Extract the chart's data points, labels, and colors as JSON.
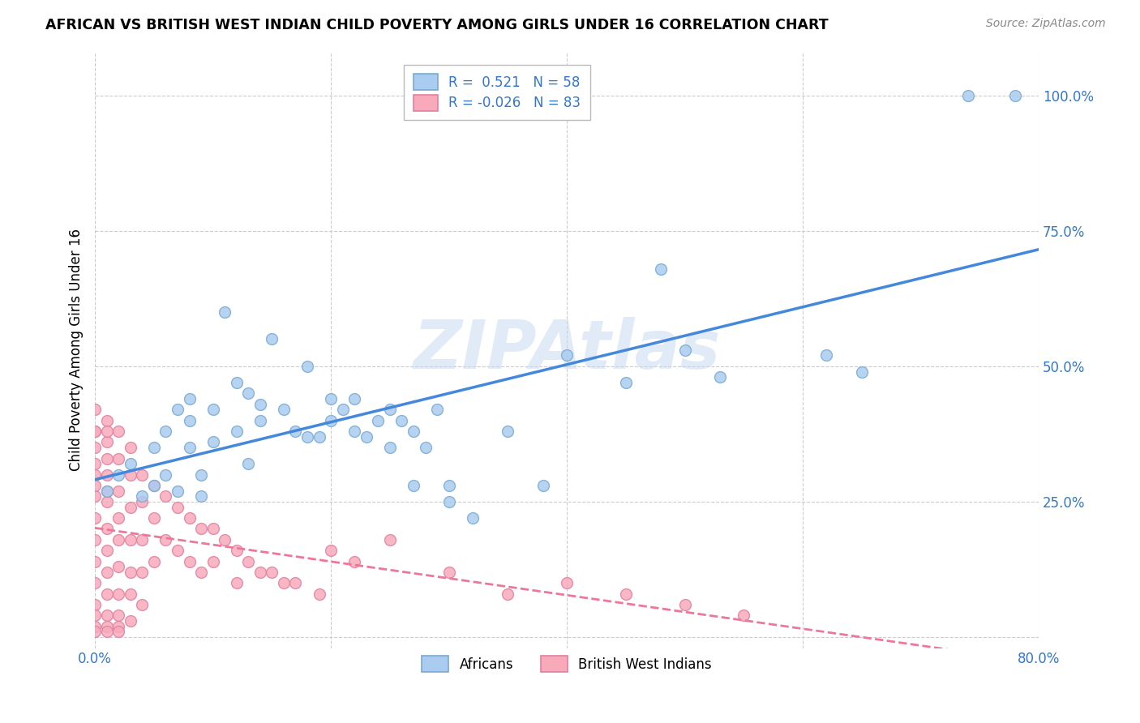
{
  "title": "AFRICAN VS BRITISH WEST INDIAN CHILD POVERTY AMONG GIRLS UNDER 16 CORRELATION CHART",
  "source": "Source: ZipAtlas.com",
  "ylabel": "Child Poverty Among Girls Under 16",
  "xlim": [
    0.0,
    0.8
  ],
  "ylim": [
    -0.02,
    1.08
  ],
  "xticks": [
    0.0,
    0.2,
    0.4,
    0.6,
    0.8
  ],
  "xticklabels": [
    "0.0%",
    "",
    "",
    "",
    "80.0%"
  ],
  "ytick_positions": [
    0.0,
    0.25,
    0.5,
    0.75,
    1.0
  ],
  "yticklabels": [
    "",
    "25.0%",
    "50.0%",
    "75.0%",
    "100.0%"
  ],
  "grid_color": "#cccccc",
  "watermark": "ZIPAtlas",
  "african_color": "#aaccf0",
  "african_edge": "#7aaad0",
  "bwi_color": "#f8aabb",
  "bwi_edge": "#e080a0",
  "R_african": 0.521,
  "N_african": 58,
  "R_bwi": -0.026,
  "N_bwi": 83,
  "african_line_color": "#4488dd",
  "bwi_line_color": "#ee7799",
  "africans_x": [
    0.01,
    0.02,
    0.03,
    0.04,
    0.05,
    0.05,
    0.06,
    0.06,
    0.07,
    0.07,
    0.08,
    0.08,
    0.08,
    0.09,
    0.09,
    0.1,
    0.1,
    0.11,
    0.12,
    0.12,
    0.13,
    0.13,
    0.14,
    0.14,
    0.15,
    0.16,
    0.17,
    0.18,
    0.18,
    0.19,
    0.2,
    0.2,
    0.21,
    0.22,
    0.22,
    0.23,
    0.24,
    0.25,
    0.25,
    0.26,
    0.27,
    0.27,
    0.28,
    0.29,
    0.3,
    0.3,
    0.32,
    0.35,
    0.38,
    0.4,
    0.45,
    0.48,
    0.5,
    0.53,
    0.62,
    0.65,
    0.74,
    0.78
  ],
  "africans_y": [
    0.27,
    0.3,
    0.32,
    0.26,
    0.35,
    0.28,
    0.3,
    0.38,
    0.42,
    0.27,
    0.35,
    0.4,
    0.44,
    0.26,
    0.3,
    0.36,
    0.42,
    0.6,
    0.38,
    0.47,
    0.32,
    0.45,
    0.4,
    0.43,
    0.55,
    0.42,
    0.38,
    0.5,
    0.37,
    0.37,
    0.4,
    0.44,
    0.42,
    0.38,
    0.44,
    0.37,
    0.4,
    0.35,
    0.42,
    0.4,
    0.38,
    0.28,
    0.35,
    0.42,
    0.25,
    0.28,
    0.22,
    0.38,
    0.28,
    0.52,
    0.47,
    0.68,
    0.53,
    0.48,
    0.52,
    0.49,
    1.0,
    1.0
  ],
  "bwi_x": [
    0.0,
    0.0,
    0.0,
    0.0,
    0.0,
    0.0,
    0.0,
    0.0,
    0.0,
    0.0,
    0.0,
    0.0,
    0.0,
    0.0,
    0.0,
    0.0,
    0.01,
    0.01,
    0.01,
    0.01,
    0.01,
    0.01,
    0.01,
    0.01,
    0.01,
    0.01,
    0.01,
    0.01,
    0.01,
    0.01,
    0.02,
    0.02,
    0.02,
    0.02,
    0.02,
    0.02,
    0.02,
    0.02,
    0.02,
    0.02,
    0.03,
    0.03,
    0.03,
    0.03,
    0.03,
    0.03,
    0.03,
    0.04,
    0.04,
    0.04,
    0.04,
    0.04,
    0.05,
    0.05,
    0.05,
    0.06,
    0.06,
    0.07,
    0.07,
    0.08,
    0.08,
    0.09,
    0.09,
    0.1,
    0.1,
    0.11,
    0.12,
    0.12,
    0.13,
    0.14,
    0.15,
    0.16,
    0.17,
    0.19,
    0.2,
    0.22,
    0.25,
    0.3,
    0.35,
    0.4,
    0.45,
    0.5,
    0.55
  ],
  "bwi_y": [
    0.42,
    0.38,
    0.35,
    0.3,
    0.26,
    0.22,
    0.18,
    0.14,
    0.1,
    0.06,
    0.04,
    0.02,
    0.01,
    0.38,
    0.32,
    0.28,
    0.4,
    0.36,
    0.3,
    0.25,
    0.2,
    0.16,
    0.12,
    0.08,
    0.04,
    0.02,
    0.01,
    0.38,
    0.33,
    0.27,
    0.38,
    0.33,
    0.27,
    0.22,
    0.18,
    0.13,
    0.08,
    0.04,
    0.02,
    0.01,
    0.35,
    0.3,
    0.24,
    0.18,
    0.12,
    0.08,
    0.03,
    0.3,
    0.25,
    0.18,
    0.12,
    0.06,
    0.28,
    0.22,
    0.14,
    0.26,
    0.18,
    0.24,
    0.16,
    0.22,
    0.14,
    0.2,
    0.12,
    0.2,
    0.14,
    0.18,
    0.16,
    0.1,
    0.14,
    0.12,
    0.12,
    0.1,
    0.1,
    0.08,
    0.16,
    0.14,
    0.18,
    0.12,
    0.08,
    0.1,
    0.08,
    0.06,
    0.04
  ]
}
